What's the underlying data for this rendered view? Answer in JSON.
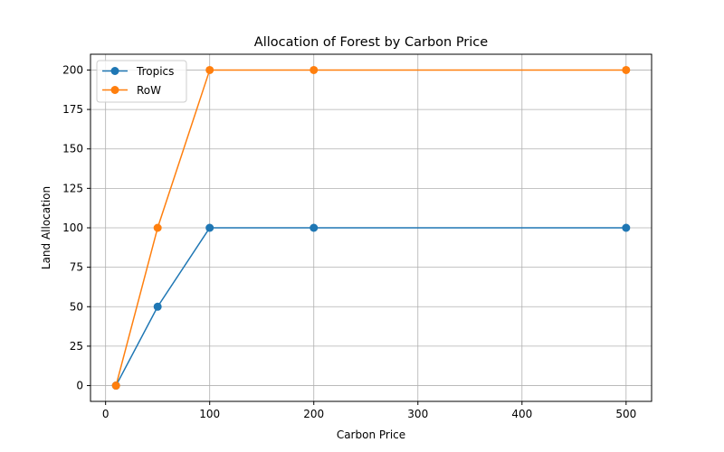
{
  "chart_data": {
    "type": "line",
    "title": "Allocation of Forest by Carbon Price",
    "xlabel": "Carbon Price",
    "ylabel": "Land Allocation",
    "x": [
      10,
      50,
      100,
      200,
      500
    ],
    "series": [
      {
        "name": "Tropics",
        "values": [
          0,
          50,
          100,
          100,
          100
        ],
        "color": "#1f77b4"
      },
      {
        "name": "RoW",
        "values": [
          0,
          100,
          200,
          200,
          200
        ],
        "color": "#ff7f0e"
      }
    ],
    "xlim": [
      -14.5,
      524.5
    ],
    "ylim": [
      -10,
      210
    ],
    "xticks": [
      0,
      100,
      200,
      300,
      400,
      500
    ],
    "yticks": [
      0,
      25,
      50,
      75,
      100,
      125,
      150,
      175,
      200
    ],
    "grid": true,
    "legend_position": "upper-left"
  }
}
